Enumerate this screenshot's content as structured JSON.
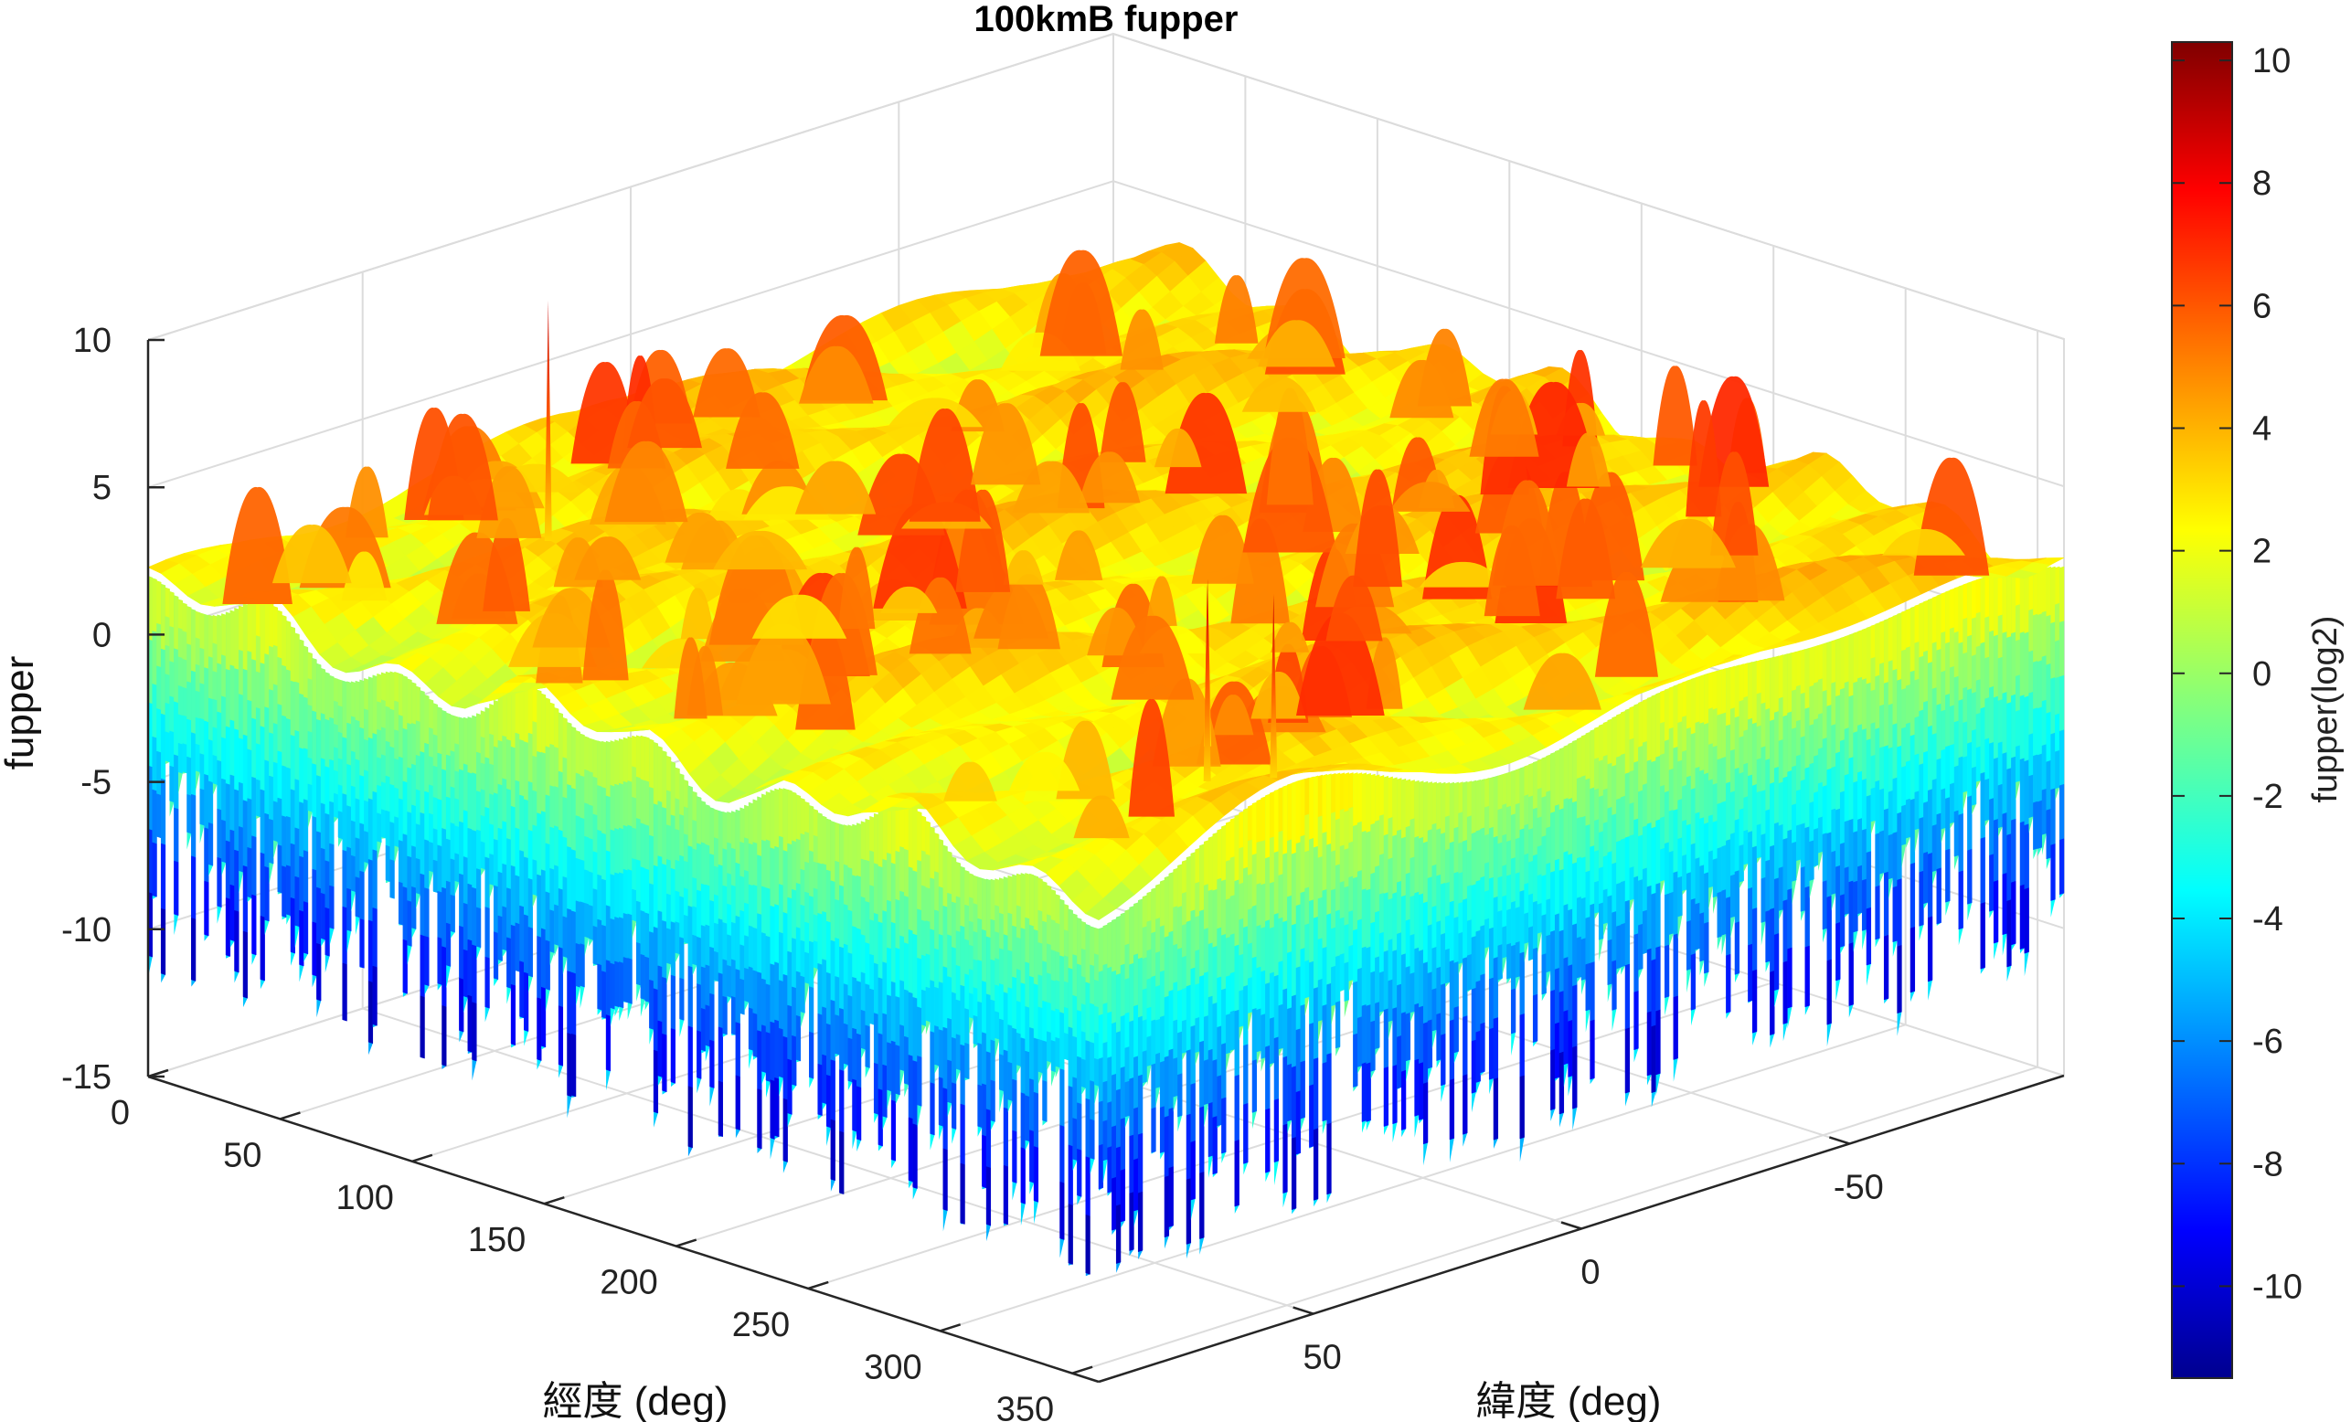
{
  "chart_data": {
    "type": "surface",
    "title": "100kmB fupper",
    "xlabel": "經度 (deg)",
    "ylabel": "緯度 (deg)",
    "zlabel": "fupper",
    "colorbar_label": "fupper(log2)",
    "colormap": "jet",
    "x_ticks": [
      "0",
      "50",
      "100",
      "150",
      "200",
      "250",
      "300",
      "350"
    ],
    "y_ticks": [
      "-50",
      "0",
      "50"
    ],
    "z_ticks": [
      "10",
      "5",
      "0",
      "-5",
      "-10",
      "-15"
    ],
    "colorbar_ticks": [
      "10",
      "8",
      "6",
      "4",
      "2",
      "0",
      "-2",
      "-4",
      "-6",
      "-8",
      "-10"
    ],
    "xlim": [
      0,
      360
    ],
    "ylim": [
      -90,
      90
    ],
    "zlim": [
      -15,
      10
    ],
    "clim": [
      -11.5,
      10.3
    ],
    "grid": true,
    "surface_summary": {
      "typical_level": [
        1,
        4
      ],
      "peak_spikes": [
        {
          "x": 50,
          "y": 40,
          "z": 9.9
        },
        {
          "x": 320,
          "y": 50,
          "z": 8.8
        },
        {
          "x": 330,
          "y": 55,
          "z": 9.2
        },
        {
          "x": 345,
          "y": 50,
          "z": 9.0
        }
      ],
      "deep_dropouts_min": -11.5
    }
  }
}
